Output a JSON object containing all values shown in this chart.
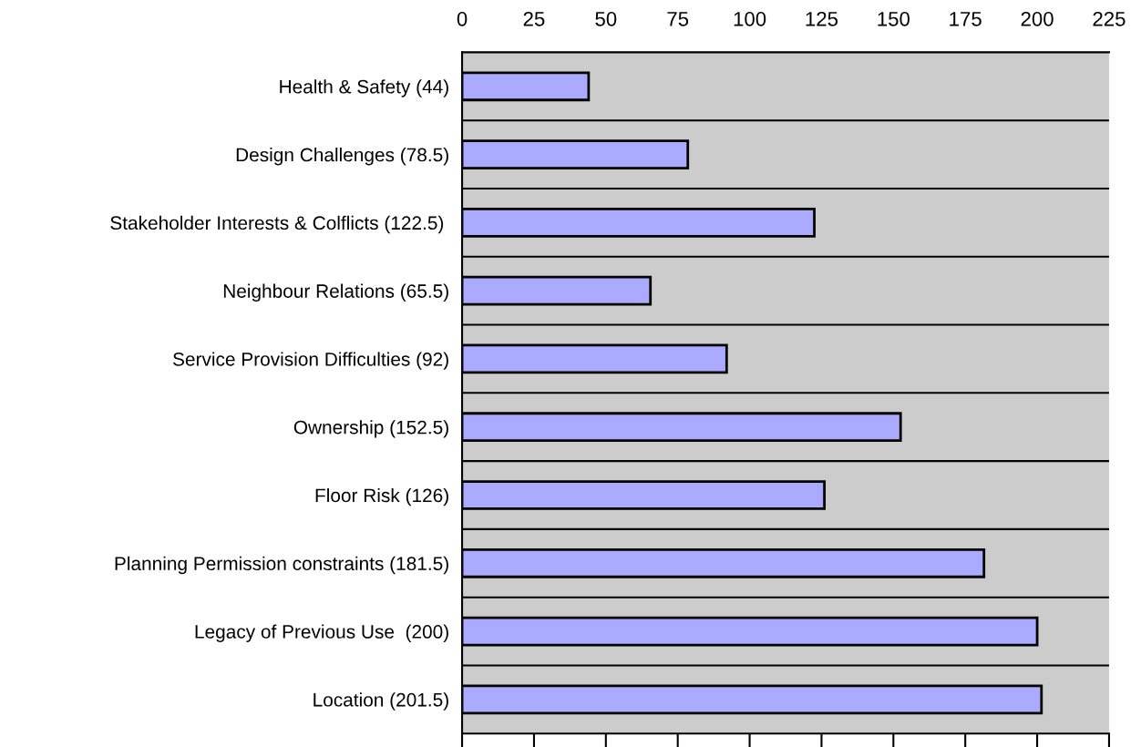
{
  "chart_data": {
    "type": "bar",
    "orientation": "horizontal",
    "categories": [
      "Health & Safety (44)",
      "Design Challenges (78.5)",
      "Stakeholder Interests & Colflicts (122.5) ",
      "Neighbour Relations (65.5)",
      "Service Provision Difficulties (92)",
      "Ownership (152.5)",
      "Floor Risk (126)",
      "Planning Permission constraints (181.5)",
      "Legacy of Previous Use  (200)",
      "Location (201.5)"
    ],
    "values": [
      44,
      78.5,
      122.5,
      65.5,
      92,
      152.5,
      126,
      181.5,
      200,
      201.5
    ],
    "color": "#aaaaff",
    "xlim": [
      0,
      225
    ],
    "xticks": [
      0,
      25,
      50,
      75,
      100,
      125,
      150,
      175,
      200,
      225
    ],
    "grid": "y",
    "legend": false
  }
}
